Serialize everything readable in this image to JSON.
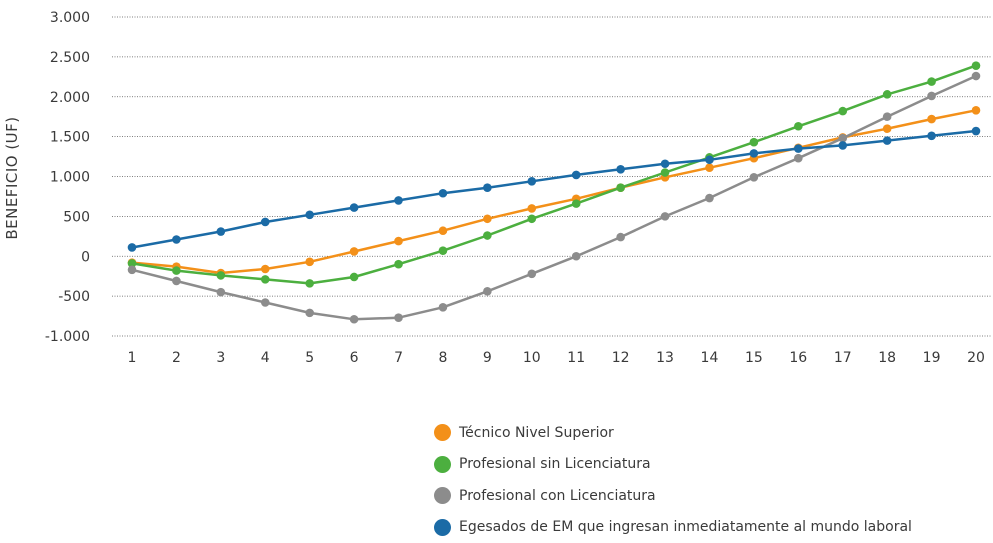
{
  "chart_data": {
    "type": "line",
    "ylabel": "BENEFICIO (UF)",
    "xlabel": "",
    "x": [
      1,
      2,
      3,
      4,
      5,
      6,
      7,
      8,
      9,
      10,
      11,
      12,
      13,
      14,
      15,
      16,
      17,
      18,
      19,
      20
    ],
    "ylim": [
      -1000,
      3000
    ],
    "yticks": [
      3000,
      2500,
      2000,
      1500,
      1000,
      500,
      0,
      -500,
      -1000
    ],
    "ytick_labels": [
      "3.000",
      "2.500",
      "2.000",
      "1.500",
      "1.000",
      "500",
      "0",
      "-500",
      "-1.000"
    ],
    "grid": "horizontal dotted",
    "legend_position": "bottom-center",
    "series": [
      {
        "name": "Técnico Nivel Superior",
        "color": "#F39019",
        "values": [
          -80,
          -130,
          -210,
          -160,
          -70,
          60,
          190,
          320,
          470,
          600,
          720,
          860,
          990,
          1110,
          1230,
          1360,
          1490,
          1600,
          1720,
          1830
        ]
      },
      {
        "name": "Profesional sin Licenciatura",
        "color": "#4CAF3F",
        "values": [
          -90,
          -180,
          -240,
          -290,
          -340,
          -260,
          -100,
          70,
          260,
          470,
          660,
          860,
          1050,
          1240,
          1430,
          1630,
          1820,
          2030,
          2190,
          2390
        ]
      },
      {
        "name": "Profesional con Licenciatura",
        "color": "#8C8C8C",
        "values": [
          -170,
          -310,
          -450,
          -580,
          -710,
          -790,
          -770,
          -640,
          -440,
          -220,
          0,
          240,
          500,
          730,
          990,
          1230,
          1480,
          1750,
          2010,
          2260
        ]
      },
      {
        "name": "Egesados de EM que ingresan inmediatamente al mundo laboral",
        "color": "#1B6BA6",
        "values": [
          110,
          210,
          310,
          430,
          520,
          610,
          700,
          790,
          860,
          940,
          1020,
          1090,
          1160,
          1210,
          1290,
          1350,
          1390,
          1450,
          1510,
          1570
        ]
      }
    ]
  }
}
